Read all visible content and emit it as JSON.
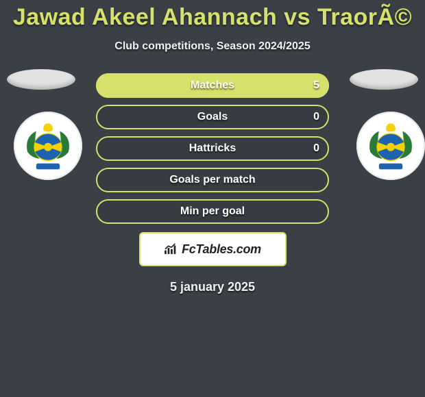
{
  "background_color": "#3a4046",
  "title": {
    "text": "Jawad Akeel Ahannach vs TraorÃ©",
    "color": "#d6e06a",
    "fontsize": 34,
    "fontweight": 900
  },
  "subtitle": {
    "text": "Club competitions, Season 2024/2025",
    "color": "#f0f0f0",
    "fontsize": 16
  },
  "stats": {
    "type": "infographic",
    "pill_width": 340,
    "pill_height": 36,
    "pill_radius": 18,
    "border_width": 2,
    "label_fontsize": 16,
    "label_color": "#ffffff",
    "value_fontsize": 16,
    "rows": [
      {
        "label": "Matches",
        "value_left": "",
        "value_right": "5",
        "fill_pct": 100,
        "fill_side": "full",
        "border_color": "#d6e06a",
        "fill_color": "#d6e06a"
      },
      {
        "label": "Goals",
        "value_left": "",
        "value_right": "0",
        "fill_pct": 0,
        "fill_side": "none",
        "border_color": "#d6e06a",
        "fill_color": "#d6e06a"
      },
      {
        "label": "Hattricks",
        "value_left": "",
        "value_right": "0",
        "fill_pct": 0,
        "fill_side": "none",
        "border_color": "#d6e06a",
        "fill_color": "#d6e06a"
      },
      {
        "label": "Goals per match",
        "value_left": "",
        "value_right": "",
        "fill_pct": 0,
        "fill_side": "none",
        "border_color": "#d6e06a",
        "fill_color": "#d6e06a"
      },
      {
        "label": "Min per goal",
        "value_left": "",
        "value_right": "",
        "fill_pct": 0,
        "fill_side": "none",
        "border_color": "#d6e06a",
        "fill_color": "#d6e06a"
      }
    ]
  },
  "side_ovals": {
    "color": "#e2e2e2",
    "width": 100,
    "height": 30
  },
  "club_badges": {
    "left": {
      "name": "club-badge-left",
      "primary": "#f2d200",
      "secondary": "#1e63b0",
      "laurel": "#2a7a3a",
      "circle_bg": "#ffffff"
    },
    "right": {
      "name": "club-badge-right",
      "primary": "#f2d200",
      "secondary": "#1e63b0",
      "laurel": "#2a7a3a",
      "circle_bg": "#ffffff"
    }
  },
  "fctables": {
    "text": "FcTables.com",
    "box_bg": "#ffffff",
    "box_border": "#d6e06a",
    "text_color": "#222222",
    "icon_color": "#222222"
  },
  "date": {
    "text": "5 january 2025",
    "color": "#f0f0f0",
    "fontsize": 18
  }
}
